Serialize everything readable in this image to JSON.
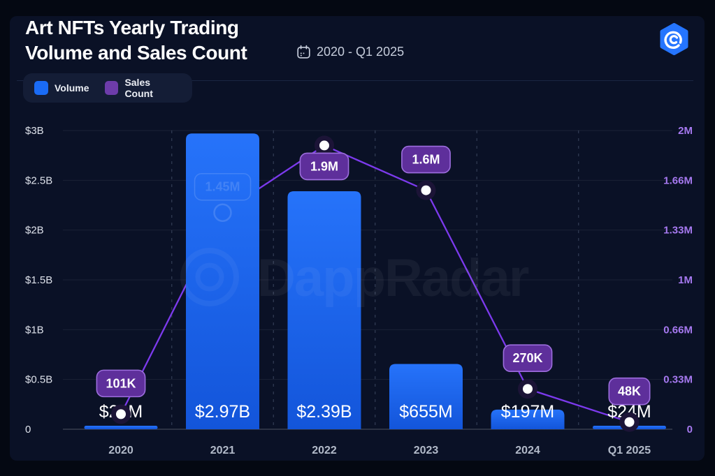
{
  "header": {
    "title_line1": "Art NFTs Yearly Trading",
    "title_line2": "Volume and Sales Count",
    "date_range": "2020 - Q1 2025"
  },
  "legend": [
    {
      "label": "Volume",
      "color": "#1a6bf5"
    },
    {
      "label": "Sales Count",
      "color": "#6d3caa"
    }
  ],
  "watermark": "DappRadar",
  "colors": {
    "background": "#0a1126",
    "bar_top": "#2673fa",
    "bar_bottom": "#1355da",
    "line": "#7c3aed",
    "badge_fill": "#5e2f9b",
    "badge_border": "#9d6ede",
    "right_axis_text": "#a679f0",
    "left_axis_text": "#dde1ea",
    "x_axis_text": "#b2bac9"
  },
  "chart_data": {
    "type": "bar+line combo",
    "title": "Art NFTs Yearly Trading Volume and Sales Count",
    "date_range": "2020 - Q1 2025",
    "categories": [
      "2020",
      "2021",
      "2022",
      "2023",
      "2024",
      "Q1 2025"
    ],
    "series": [
      {
        "name": "Volume",
        "type": "bar",
        "axis": "left",
        "unit": "USD",
        "values": [
          29000000,
          2970000000,
          2390000000,
          655000000,
          197000000,
          24000000
        ],
        "labels": [
          "$29M",
          "$2.97B",
          "$2.39B",
          "$655M",
          "$197M",
          "$24M"
        ]
      },
      {
        "name": "Sales Count",
        "type": "line",
        "axis": "right",
        "unit": "sales",
        "values": [
          101000,
          1450000,
          1900000,
          1600000,
          270000,
          48000
        ],
        "labels": [
          "101K",
          "1.45M",
          "1.9M",
          "1.6M",
          "270K",
          "48K"
        ],
        "badge_positions": [
          "above",
          "hidden",
          "below",
          "above",
          "above",
          "above"
        ]
      }
    ],
    "left_axis": {
      "min": 0,
      "max": 3000000000,
      "tick_labels": [
        "$3B",
        "$2.5B",
        "$2B",
        "$1.5B",
        "$1B",
        "$0.5B",
        "0"
      ]
    },
    "right_axis": {
      "min": 0,
      "max": 2000000,
      "tick_labels": [
        "2M",
        "1.66M",
        "1.33M",
        "1M",
        "0.66M",
        "0.33M",
        "0"
      ]
    },
    "grid": {
      "horizontal": "solid",
      "vertical": "dashed"
    },
    "legend_position": "top-left"
  }
}
